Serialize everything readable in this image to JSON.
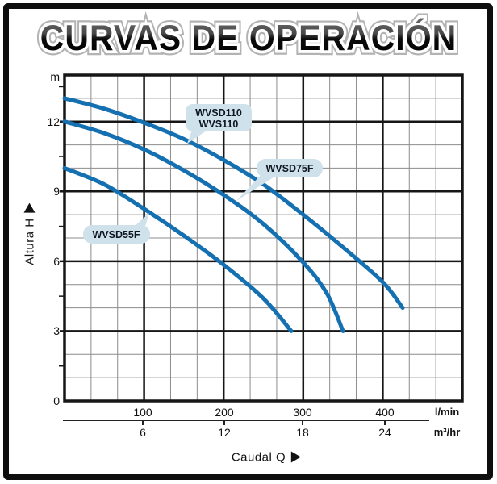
{
  "title": "CURVAS DE OPERACIÓN",
  "chart_data": {
    "type": "line",
    "title": "CURVAS DE OPERACIÓN",
    "x_axis": {
      "label": "Caudal  Q",
      "arrow": "►",
      "range_lmin": [
        0,
        500
      ],
      "grid_major_step_lmin": 100,
      "grid_minor_per_major": 3,
      "units_primary": {
        "name": "l/min",
        "ticks": [
          "100",
          "200",
          "300",
          "400"
        ]
      },
      "units_secondary": {
        "name": "m³/hr",
        "ticks": [
          "6",
          "12",
          "18",
          "24"
        ]
      }
    },
    "y_axis": {
      "label": "Altura  H",
      "arrow": "▲",
      "unit": "m",
      "range_m": [
        0,
        14
      ],
      "grid_major_step_m": 3,
      "grid_minor_step_m": 1,
      "ticks": [
        "12",
        "9",
        "6",
        "3",
        "0"
      ]
    },
    "series": [
      {
        "name": "WVSD110 / WVS110",
        "label_lines": [
          "WVSD110",
          "WVS110"
        ],
        "points": [
          [
            0,
            13
          ],
          [
            50,
            12.55
          ],
          [
            100,
            11.95
          ],
          [
            150,
            11.25
          ],
          [
            200,
            10.35
          ],
          [
            250,
            9.3
          ],
          [
            300,
            8.0
          ],
          [
            350,
            6.6
          ],
          [
            400,
            5.1
          ],
          [
            425,
            4.0
          ]
        ]
      },
      {
        "name": "WVSD75F",
        "label_lines": [
          "WVSD75F"
        ],
        "points": [
          [
            0,
            12
          ],
          [
            50,
            11.5
          ],
          [
            100,
            10.8
          ],
          [
            150,
            9.9
          ],
          [
            200,
            8.85
          ],
          [
            250,
            7.6
          ],
          [
            300,
            5.95
          ],
          [
            330,
            4.6
          ],
          [
            350,
            3.0
          ]
        ]
      },
      {
        "name": "WVSD55F",
        "label_lines": [
          "WVSD55F"
        ],
        "points": [
          [
            0,
            10
          ],
          [
            50,
            9.3
          ],
          [
            100,
            8.25
          ],
          [
            150,
            7.1
          ],
          [
            200,
            5.85
          ],
          [
            250,
            4.4
          ],
          [
            285,
            3.0
          ]
        ]
      }
    ],
    "legend_position": "callouts-on-curves",
    "grid": true,
    "colors": {
      "curve": "#1470b0",
      "callout_bg": "#cfe2ec",
      "callout_text": "#0e1620",
      "grid_minor": "#8c8c8c",
      "grid_major": "#161616",
      "border": "#0e0e0e"
    }
  }
}
